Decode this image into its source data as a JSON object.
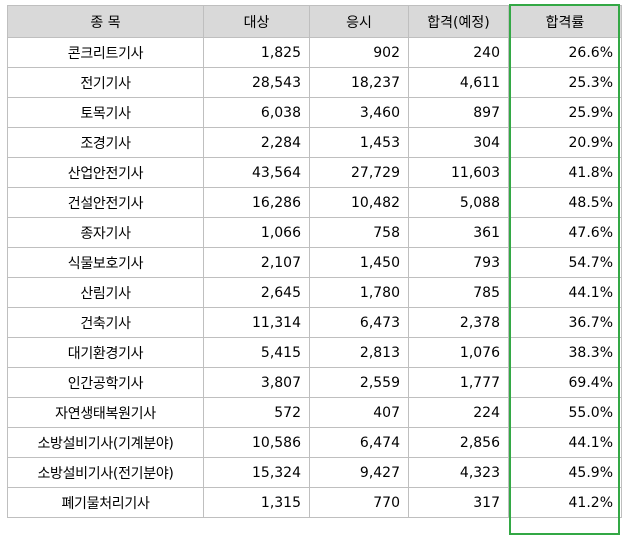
{
  "headers": [
    "종  목",
    "대상",
    "응시",
    "합격(예정)",
    "합격률"
  ],
  "rows": [
    [
      "콘크리트기사",
      "1,825",
      "902",
      "240",
      "26.6%"
    ],
    [
      "전기기사",
      "28,543",
      "18,237",
      "4,611",
      "25.3%"
    ],
    [
      "토목기사",
      "6,038",
      "3,460",
      "897",
      "25.9%"
    ],
    [
      "조경기사",
      "2,284",
      "1,453",
      "304",
      "20.9%"
    ],
    [
      "산업안전기사",
      "43,564",
      "27,729",
      "11,603",
      "41.8%"
    ],
    [
      "건설안전기사",
      "16,286",
      "10,482",
      "5,088",
      "48.5%"
    ],
    [
      "종자기사",
      "1,066",
      "758",
      "361",
      "47.6%"
    ],
    [
      "식물보호기사",
      "2,107",
      "1,450",
      "793",
      "54.7%"
    ],
    [
      "산림기사",
      "2,645",
      "1,780",
      "785",
      "44.1%"
    ],
    [
      "건축기사",
      "11,314",
      "6,473",
      "2,378",
      "36.7%"
    ],
    [
      "대기환경기사",
      "5,415",
      "2,813",
      "1,076",
      "38.3%"
    ],
    [
      "인간공학기사",
      "3,807",
      "2,559",
      "1,777",
      "69.4%"
    ],
    [
      "자연생태복원기사",
      "572",
      "407",
      "224",
      "55.0%"
    ],
    [
      "소방설비기사(기계분야)",
      "10,586",
      "6,474",
      "2,856",
      "44.1%"
    ],
    [
      "소방설비기사(전기분야)",
      "15,324",
      "9,427",
      "4,323",
      "45.9%"
    ],
    [
      "폐기물처리기사",
      "1,315",
      "770",
      "317",
      "41.2%"
    ]
  ],
  "highlight": {
    "column": "합격률",
    "color": "#33a845"
  }
}
